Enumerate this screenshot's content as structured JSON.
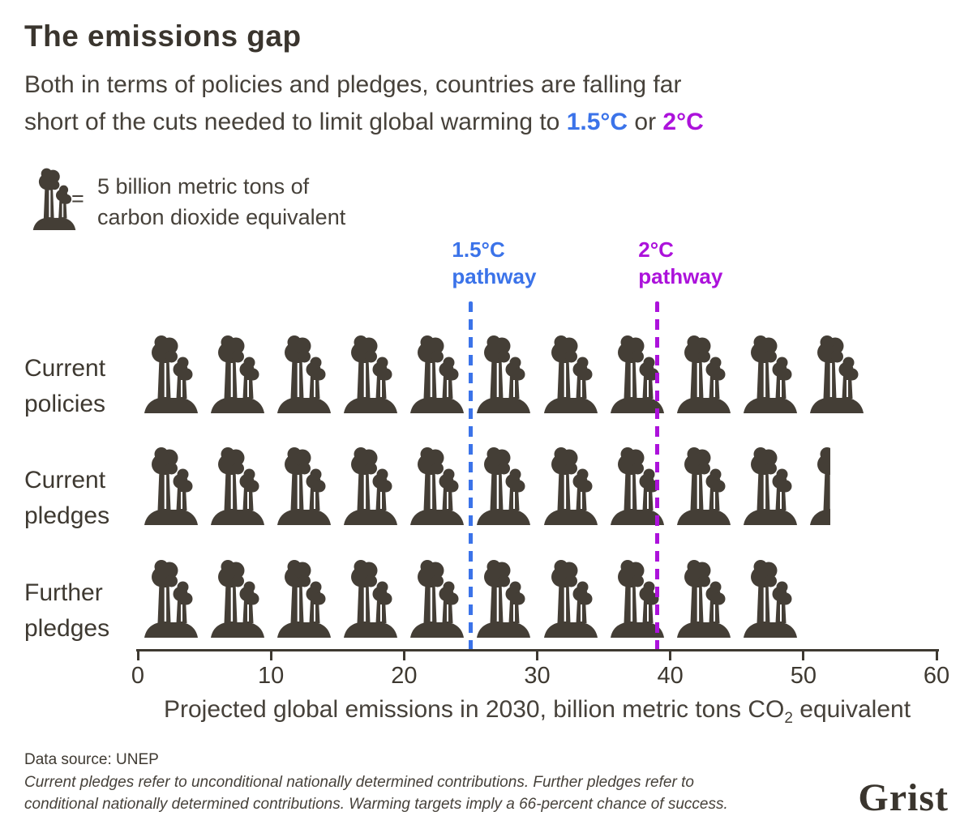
{
  "colors": {
    "ink": "#443e36",
    "text": "#3e3931",
    "blue": "#3b73e9",
    "magenta": "#ac12db",
    "background": "#ffffff"
  },
  "header": {
    "title": "The emissions gap",
    "subtitle_line1": "Both in terms of policies and pledges, countries are falling far",
    "subtitle_line2_prefix": "short of the cuts needed to limit global warming to ",
    "target1": "1.5°C",
    "subtitle_or": " or ",
    "target2": "2°C"
  },
  "legend": {
    "icon": "smokestack-icon",
    "equals": "=",
    "line1": "5 billion metric tons of",
    "line2": "carbon dioxide equivalent"
  },
  "chart_data": {
    "type": "pictogram-bar",
    "unit_per_icon": 5,
    "unit": "billion metric tons CO2 equivalent",
    "categories": [
      "Current policies",
      "Current pledges",
      "Further pledges"
    ],
    "values": [
      55,
      52,
      50
    ],
    "row_labels": [
      [
        "Current",
        "policies"
      ],
      [
        "Current",
        "pledges"
      ],
      [
        "Further",
        "pledges"
      ]
    ],
    "reference_lines": [
      {
        "label_line1": "1.5°C",
        "label_line2": "pathway",
        "value": 25,
        "color": "#3b73e9"
      },
      {
        "label_line1": "2°C",
        "label_line2": "pathway",
        "value": 39,
        "color": "#ac12db"
      }
    ],
    "axis": {
      "min": 0,
      "max": 60,
      "ticks": [
        0,
        10,
        20,
        30,
        40,
        50,
        60
      ]
    },
    "xlabel_prefix": "Projected global emissions in 2030, billion metric tons CO",
    "xlabel_sub": "2",
    "xlabel_suffix": " equivalent",
    "legend_note": "1 icon = 5 billion metric tons of carbon dioxide equivalent"
  },
  "footer": {
    "source": "Data source: UNEP",
    "note_line1": "Current pledges refer to unconditional nationally determined contributions. Further pledges refer to",
    "note_line2": "conditional nationally determined contributions. Warming targets imply a 66-percent chance of success.",
    "logo": "Grist"
  }
}
